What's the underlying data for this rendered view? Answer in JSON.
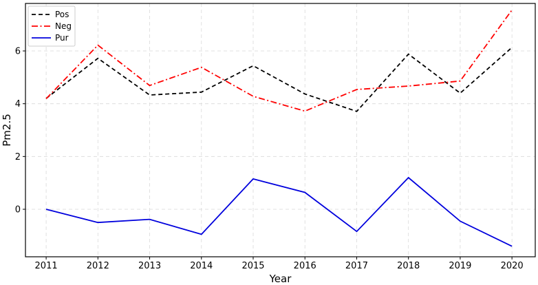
{
  "chart_data": {
    "type": "line",
    "title": "",
    "xlabel": "Year",
    "ylabel": "Pm2.5",
    "x": [
      2011,
      2012,
      2013,
      2014,
      2015,
      2016,
      2017,
      2018,
      2019,
      2020
    ],
    "x_tick_labels": [
      "2011",
      "2012",
      "2013",
      "2014",
      "2015",
      "2016",
      "2017",
      "2018",
      "2019",
      "2020"
    ],
    "xlim": [
      2010.6,
      2020.45
    ],
    "ylim": [
      -1.8,
      7.8
    ],
    "y_ticks": [
      0,
      2,
      4,
      6
    ],
    "y_tick_labels": [
      "0",
      "2",
      "4",
      "6"
    ],
    "grid": true,
    "legend_position": "top-left",
    "series": [
      {
        "name": "Pos",
        "color": "#000000",
        "line_style": "dashed",
        "values": [
          4.2,
          5.72,
          4.33,
          4.44,
          5.44,
          4.37,
          3.71,
          5.88,
          4.4,
          6.13
        ]
      },
      {
        "name": "Neg",
        "color": "#ff0000",
        "line_style": "dash-dot",
        "values": [
          4.19,
          6.22,
          4.69,
          5.38,
          4.28,
          3.72,
          4.54,
          4.67,
          4.86,
          7.55
        ]
      },
      {
        "name": "Pur",
        "color": "#0000dd",
        "line_style": "solid",
        "values": [
          0.0,
          -0.5,
          -0.38,
          -0.95,
          1.15,
          0.64,
          -0.84,
          1.2,
          -0.45,
          -1.4
        ]
      }
    ]
  }
}
